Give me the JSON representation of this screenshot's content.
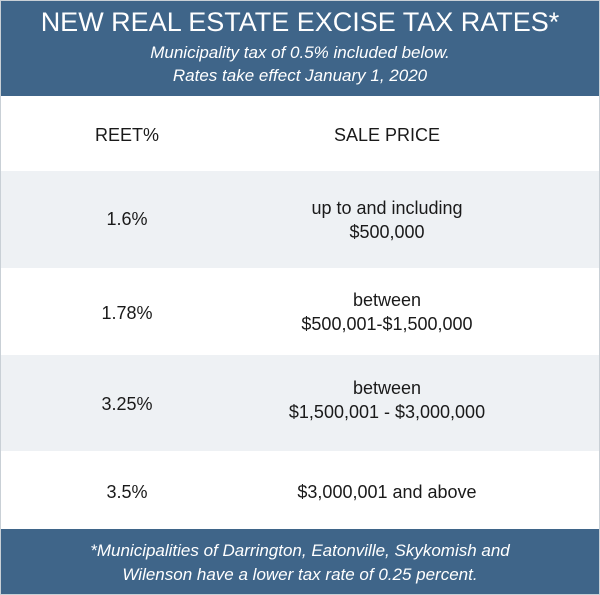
{
  "header": {
    "title": "NEW REAL ESTATE EXCISE TAX RATES*",
    "subtitle_line1": "Municipality tax of 0.5% included below.",
    "subtitle_line2": "Rates take effect January 1, 2020"
  },
  "table": {
    "headers": [
      "REET%",
      "SALE PRICE"
    ],
    "rows": [
      {
        "rate": "1.6%",
        "price_line1": "up to and including",
        "price_line2": "$500,000"
      },
      {
        "rate": "1.78%",
        "price_line1": "between",
        "price_line2": "$500,001-$1,500,000"
      },
      {
        "rate": "3.25%",
        "price_line1": "between",
        "price_line2": "$1,500,001 - $3,000,000"
      },
      {
        "rate": "3.5%",
        "price_line1": "$3,000,001 and above"
      }
    ]
  },
  "footer": {
    "line1": "*Municipalities of Darrington, Eatonville, Skykomish and",
    "line2": "Wilenson have a lower tax rate of 0.25 percent."
  },
  "colors": {
    "header_bg": "#3f6589",
    "row_shade": "#eef1f4",
    "text": "#1a1a1a"
  }
}
